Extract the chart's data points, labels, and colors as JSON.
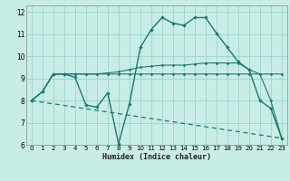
{
  "xlabel": "Humidex (Indice chaleur)",
  "xlim": [
    -0.5,
    23.5
  ],
  "ylim": [
    6,
    12.3
  ],
  "yticks": [
    6,
    7,
    8,
    9,
    10,
    11,
    12
  ],
  "xticks": [
    0,
    1,
    2,
    3,
    4,
    5,
    6,
    7,
    8,
    9,
    10,
    11,
    12,
    13,
    14,
    15,
    16,
    17,
    18,
    19,
    20,
    21,
    22,
    23
  ],
  "bg_color": "#c8ece6",
  "line_color": "#1a7a6e",
  "grid_color": "#9dd4cc",
  "line1_x": [
    0,
    1,
    2,
    3,
    4,
    5,
    6,
    7,
    8,
    9,
    10,
    11,
    12,
    13,
    14,
    15,
    16,
    17,
    18,
    19,
    20,
    21,
    22,
    23
  ],
  "line1_y": [
    8.0,
    8.4,
    9.2,
    9.2,
    9.05,
    7.8,
    7.7,
    8.35,
    6.05,
    7.85,
    10.4,
    11.2,
    11.75,
    11.5,
    11.4,
    11.75,
    11.75,
    11.05,
    10.4,
    9.75,
    9.4,
    8.0,
    7.65,
    6.3
  ],
  "line2_x": [
    0,
    1,
    2,
    3,
    4,
    5,
    6,
    7,
    8,
    9,
    10,
    11,
    12,
    13,
    14,
    15,
    16,
    17,
    18,
    19,
    20,
    21,
    22,
    23
  ],
  "line2_y": [
    8.0,
    8.4,
    9.2,
    9.2,
    9.2,
    9.2,
    9.2,
    9.2,
    9.2,
    9.2,
    9.2,
    9.2,
    9.2,
    9.2,
    9.2,
    9.2,
    9.2,
    9.2,
    9.2,
    9.2,
    9.2,
    9.2,
    9.2,
    9.2
  ],
  "line3_x": [
    0,
    1,
    2,
    3,
    4,
    5,
    6,
    7,
    8,
    9,
    10,
    11,
    12,
    13,
    14,
    15,
    16,
    17,
    18,
    19,
    20,
    21,
    22,
    23
  ],
  "line3_y": [
    8.0,
    8.4,
    9.2,
    9.2,
    9.2,
    9.2,
    9.2,
    9.25,
    9.3,
    9.4,
    9.5,
    9.55,
    9.6,
    9.6,
    9.6,
    9.65,
    9.7,
    9.7,
    9.7,
    9.7,
    9.4,
    9.2,
    8.0,
    6.3
  ],
  "line4_x": [
    0,
    23
  ],
  "line4_y": [
    8.0,
    6.3
  ]
}
